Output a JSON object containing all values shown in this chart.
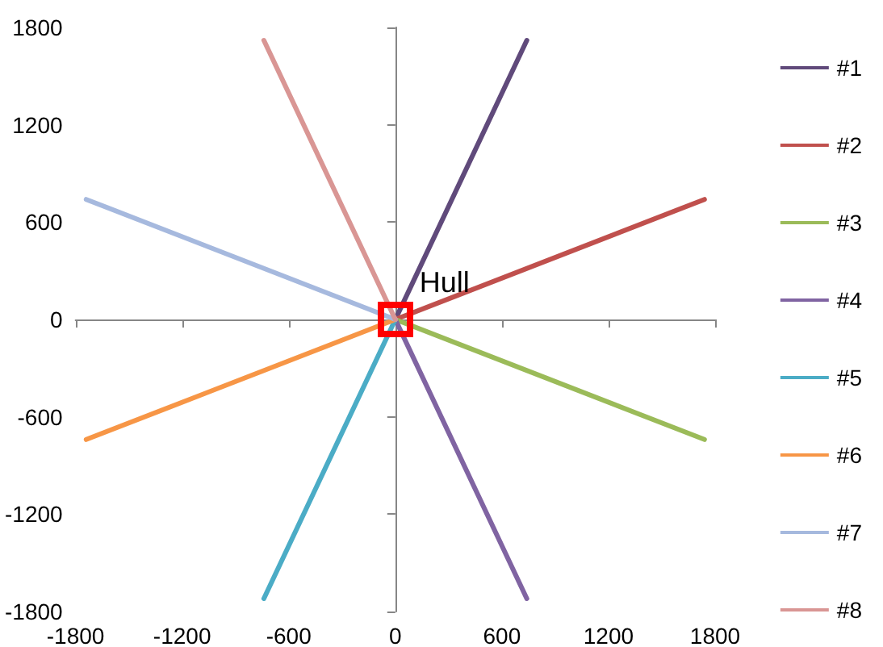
{
  "chart_data": {
    "type": "line",
    "xlim": [
      -1800,
      1800
    ],
    "xticks": [
      -1800,
      -1200,
      -600,
      0,
      600,
      1200,
      1800
    ],
    "ylim": [
      -1800,
      1800
    ],
    "yticks": [
      -1800,
      -1200,
      -600,
      0,
      600,
      1200,
      1800
    ],
    "legend": "right",
    "annotations": [
      {
        "text": "Hull",
        "x": 0,
        "y": 0
      }
    ],
    "series": [
      {
        "name": "#1",
        "color": "#604a7b",
        "x": [
          0,
          740
        ],
        "values": [
          0,
          1720
        ]
      },
      {
        "name": "#2",
        "color": "#c0504d",
        "x": [
          0,
          1740
        ],
        "values": [
          0,
          740
        ]
      },
      {
        "name": "#3",
        "color": "#9bbb59",
        "x": [
          0,
          1740
        ],
        "values": [
          0,
          -740
        ]
      },
      {
        "name": "#4",
        "color": "#8064a2",
        "x": [
          0,
          740
        ],
        "values": [
          0,
          -1720
        ]
      },
      {
        "name": "#5",
        "color": "#4bacc6",
        "x": [
          0,
          -740
        ],
        "values": [
          0,
          -1720
        ]
      },
      {
        "name": "#6",
        "color": "#f79646",
        "x": [
          0,
          -1740
        ],
        "values": [
          0,
          -740
        ]
      },
      {
        "name": "#7",
        "color": "#a6b9de",
        "x": [
          0,
          -1740
        ],
        "values": [
          0,
          740
        ]
      },
      {
        "name": "#8",
        "color": "#d99694",
        "x": [
          0,
          -740
        ],
        "values": [
          0,
          1720
        ]
      }
    ]
  }
}
